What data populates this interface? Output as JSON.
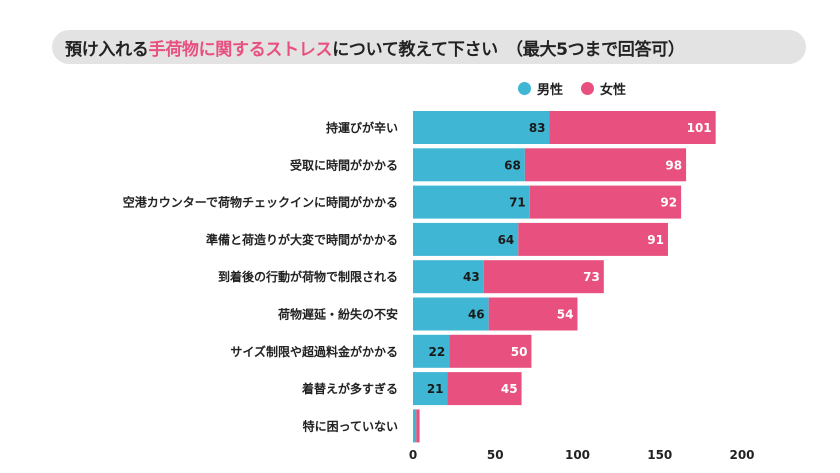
{
  "title": {
    "prefix": "預け入れる",
    "highlight": "手荷物に関するストレス",
    "suffix": "について教えて下さい　（最大5つまで回答可）"
  },
  "colors": {
    "male": "#3fb6d3",
    "female": "#e8507f",
    "title_bg": "#e3e3e3",
    "highlight": "#e8507f"
  },
  "chart_data": {
    "type": "bar",
    "orientation": "horizontal",
    "stacked": true,
    "categories": [
      "持運びが辛い",
      "受取に時間がかかる",
      "空港カウンターで荷物チェックインに時間がかかる",
      "準備と荷造りが大変で時間がかかる",
      "到着後の行動が荷物で制限される",
      "荷物遅延・紛失の不安",
      "サイズ制限や超過料金がかかる",
      "着替えが多すぎる",
      "特に困っていない"
    ],
    "series": [
      {
        "name": "男性",
        "color": "#3fb6d3",
        "values": [
          83,
          68,
          71,
          64,
          43,
          46,
          22,
          21,
          2
        ]
      },
      {
        "name": "女性",
        "color": "#e8507f",
        "values": [
          101,
          98,
          92,
          91,
          73,
          54,
          50,
          45,
          2
        ]
      }
    ],
    "value_labels_shown": [
      true,
      true,
      true,
      true,
      true,
      true,
      true,
      true,
      false
    ],
    "xlim": [
      0,
      200
    ],
    "xticks": [
      "0",
      "50",
      "100",
      "150",
      "200"
    ],
    "legend_position": "top-right",
    "grid": false
  }
}
